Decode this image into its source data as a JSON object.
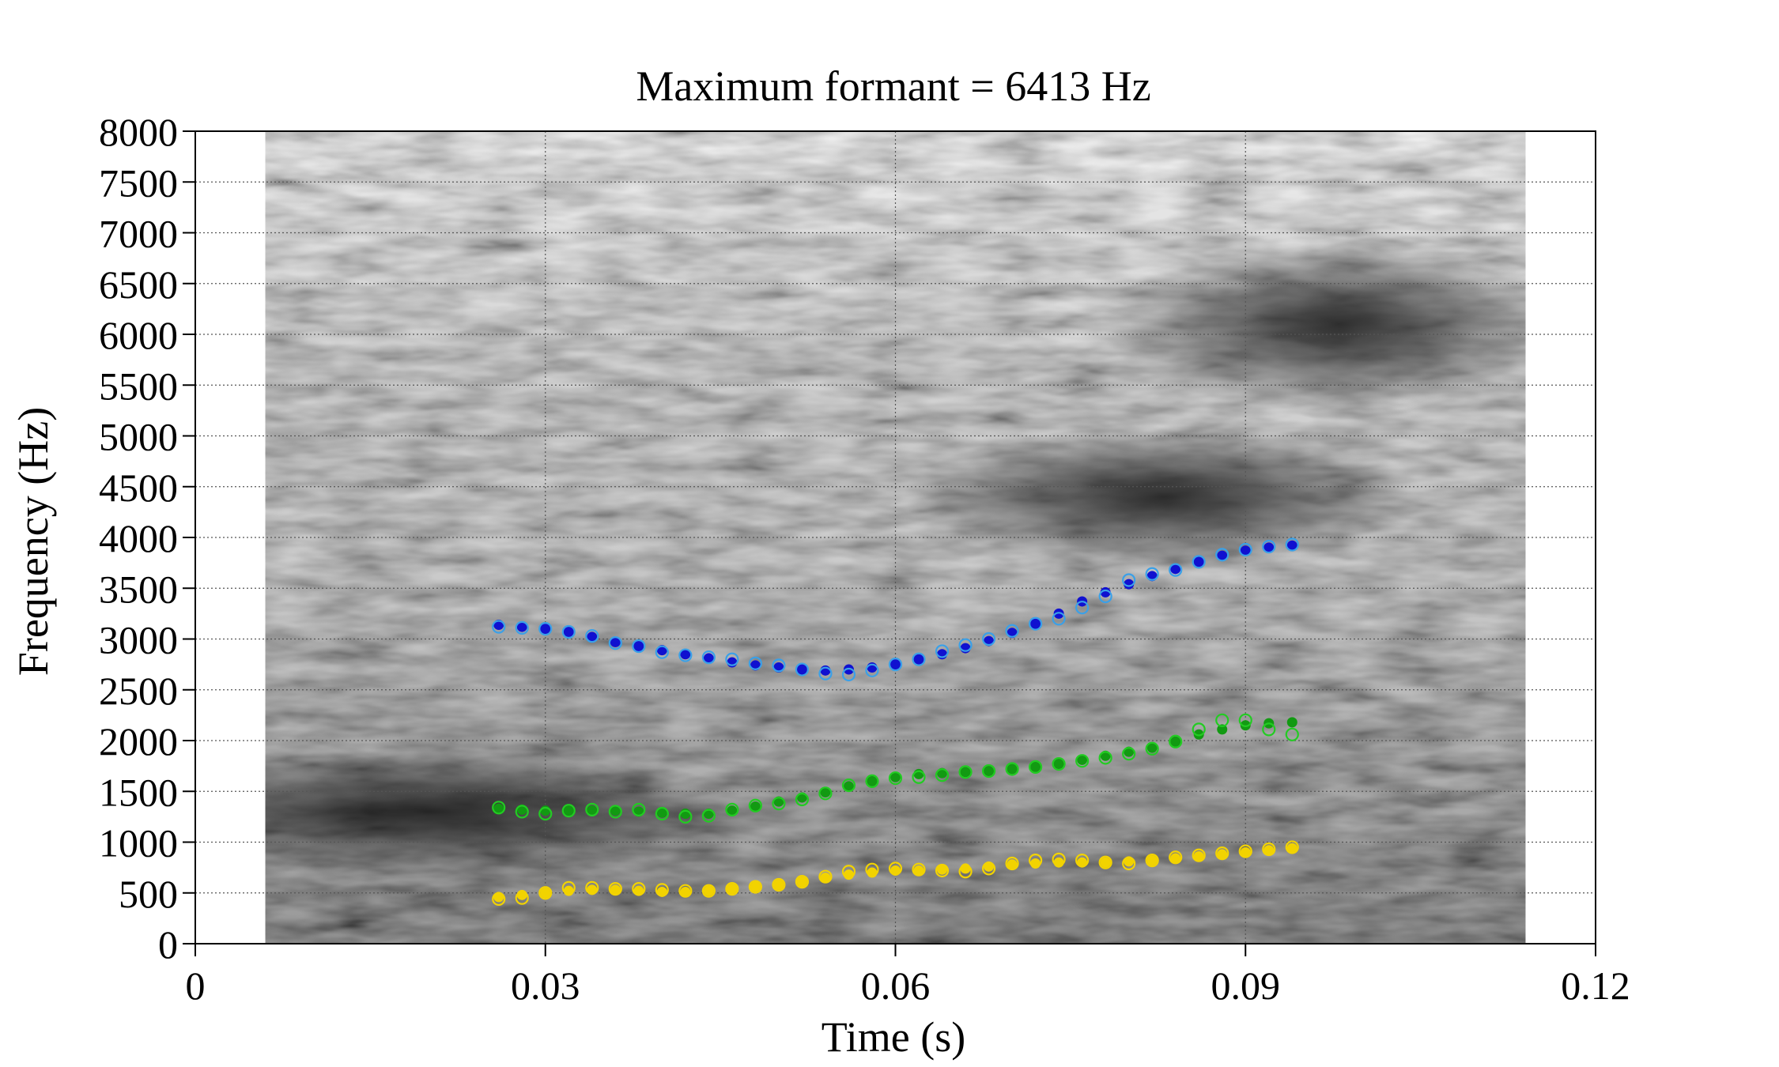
{
  "chart_data": {
    "type": "scatter",
    "title": "Maximum formant = 6413 Hz",
    "xlabel": "Time (s)",
    "ylabel": "Frequency (Hz)",
    "xlim": [
      0,
      0.12
    ],
    "ylim": [
      0,
      8000
    ],
    "x_ticks": [
      0,
      0.03,
      0.06,
      0.09,
      0.12
    ],
    "x_tick_labels": [
      "0",
      "0.03",
      "0.06",
      "0.09",
      "0.12"
    ],
    "y_ticks": [
      0,
      500,
      1000,
      1500,
      2000,
      2500,
      3000,
      3500,
      4000,
      4500,
      5000,
      5500,
      6000,
      6500,
      7000,
      7500,
      8000
    ],
    "y_tick_labels": [
      "0",
      "500",
      "1000",
      "1500",
      "2000",
      "2500",
      "3000",
      "3500",
      "4000",
      "4500",
      "5000",
      "5500",
      "6000",
      "6500",
      "7000",
      "7500",
      "8000"
    ],
    "grid": true,
    "background": "grayscale spectrogram, 0.006–0.114 s",
    "spectrogram_time_range": [
      0.006,
      0.114
    ],
    "x": [
      0.026,
      0.028,
      0.03,
      0.032,
      0.034,
      0.036,
      0.038,
      0.04,
      0.042,
      0.044,
      0.046,
      0.048,
      0.05,
      0.052,
      0.054,
      0.056,
      0.058,
      0.06,
      0.062,
      0.064,
      0.066,
      0.068,
      0.07,
      0.072,
      0.074,
      0.076,
      0.078,
      0.08,
      0.082,
      0.084,
      0.086,
      0.088,
      0.09,
      0.092,
      0.094
    ],
    "series": [
      {
        "style": "filled",
        "color": "#f2d300",
        "values": [
          460,
          480,
          500,
          520,
          530,
          530,
          520,
          510,
          510,
          520,
          540,
          560,
          580,
          610,
          650,
          680,
          700,
          720,
          720,
          730,
          740,
          760,
          780,
          790,
          800,
          800,
          800,
          810,
          820,
          840,
          860,
          880,
          900,
          920,
          940
        ]
      },
      {
        "style": "hollow",
        "color": "#f2d300",
        "values": [
          440,
          450,
          500,
          550,
          550,
          540,
          540,
          530,
          520,
          520,
          540,
          560,
          580,
          610,
          660,
          710,
          730,
          740,
          730,
          720,
          710,
          740,
          790,
          820,
          830,
          820,
          800,
          790,
          820,
          850,
          870,
          890,
          910,
          930,
          950
        ]
      },
      {
        "style": "filled",
        "color": "#129a12",
        "values": [
          1330,
          1320,
          1310,
          1310,
          1310,
          1310,
          1300,
          1290,
          1280,
          1280,
          1310,
          1350,
          1400,
          1440,
          1490,
          1550,
          1600,
          1640,
          1670,
          1680,
          1690,
          1700,
          1720,
          1740,
          1770,
          1810,
          1850,
          1890,
          1930,
          1990,
          2060,
          2110,
          2150,
          2170,
          2180
        ]
      },
      {
        "style": "hollow",
        "color": "#22cc22",
        "values": [
          1340,
          1300,
          1280,
          1310,
          1320,
          1300,
          1320,
          1280,
          1250,
          1260,
          1320,
          1360,
          1380,
          1420,
          1480,
          1560,
          1600,
          1630,
          1640,
          1660,
          1690,
          1700,
          1720,
          1740,
          1770,
          1800,
          1830,
          1870,
          1920,
          1990,
          2110,
          2200,
          2200,
          2110,
          2060
        ]
      },
      {
        "style": "filled",
        "color": "#1010d0",
        "values": [
          3140,
          3120,
          3100,
          3070,
          3020,
          2970,
          2930,
          2890,
          2850,
          2810,
          2770,
          2740,
          2720,
          2700,
          2690,
          2700,
          2720,
          2750,
          2800,
          2850,
          2910,
          2980,
          3060,
          3150,
          3250,
          3370,
          3460,
          3540,
          3620,
          3690,
          3760,
          3820,
          3870,
          3900,
          3920
        ]
      },
      {
        "style": "hollow",
        "color": "#3aa0e8",
        "values": [
          3120,
          3110,
          3100,
          3070,
          3030,
          2960,
          2930,
          2870,
          2840,
          2820,
          2800,
          2760,
          2740,
          2700,
          2660,
          2650,
          2690,
          2750,
          2800,
          2880,
          2940,
          3000,
          3080,
          3150,
          3200,
          3310,
          3420,
          3580,
          3640,
          3680,
          3760,
          3830,
          3880,
          3910,
          3930
        ]
      }
    ]
  }
}
